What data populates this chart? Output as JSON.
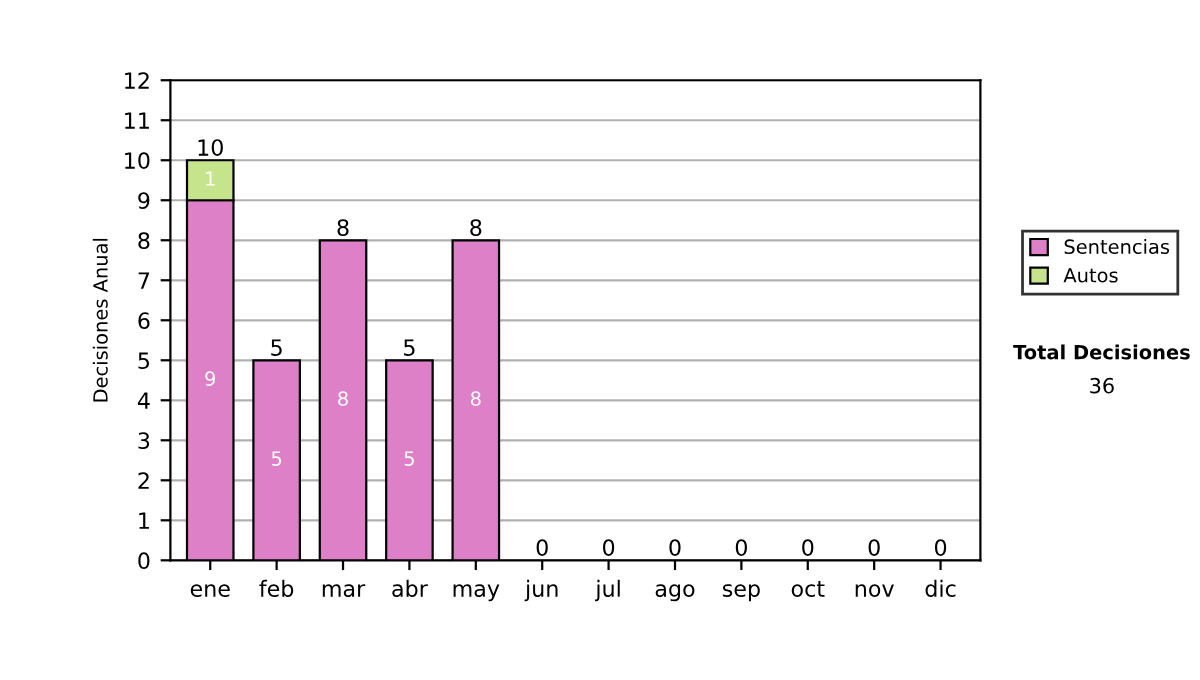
{
  "chart_data": {
    "type": "bar",
    "stacked": true,
    "ylabel": "Decisiones Anual",
    "categories": [
      "ene",
      "feb",
      "mar",
      "abr",
      "may",
      "jun",
      "jul",
      "ago",
      "sep",
      "oct",
      "nov",
      "dic"
    ],
    "series": [
      {
        "name": "Sentencias",
        "color": "#dd80c8",
        "values": [
          9,
          5,
          8,
          5,
          8,
          0,
          0,
          0,
          0,
          0,
          0,
          0
        ],
        "value_labels": [
          "9",
          "5",
          "8",
          "5",
          "8",
          null,
          null,
          null,
          null,
          null,
          null,
          null
        ]
      },
      {
        "name": "Autos",
        "color": "#c6e48c",
        "values": [
          1,
          0,
          0,
          0,
          0,
          0,
          0,
          0,
          0,
          0,
          0,
          0
        ],
        "value_labels": [
          "1",
          null,
          null,
          null,
          null,
          null,
          null,
          null,
          null,
          null,
          null,
          null
        ]
      }
    ],
    "totals": [
      "10",
      "5",
      "8",
      "5",
      "8",
      "0",
      "0",
      "0",
      "0",
      "0",
      "0",
      "0"
    ],
    "ylim": [
      0,
      12
    ],
    "yticks": [
      0,
      1,
      2,
      3,
      4,
      5,
      6,
      7,
      8,
      9,
      10,
      11,
      12
    ],
    "grid": "y",
    "legend": "right",
    "annotations": [
      "Total Decisiones",
      "36"
    ]
  }
}
